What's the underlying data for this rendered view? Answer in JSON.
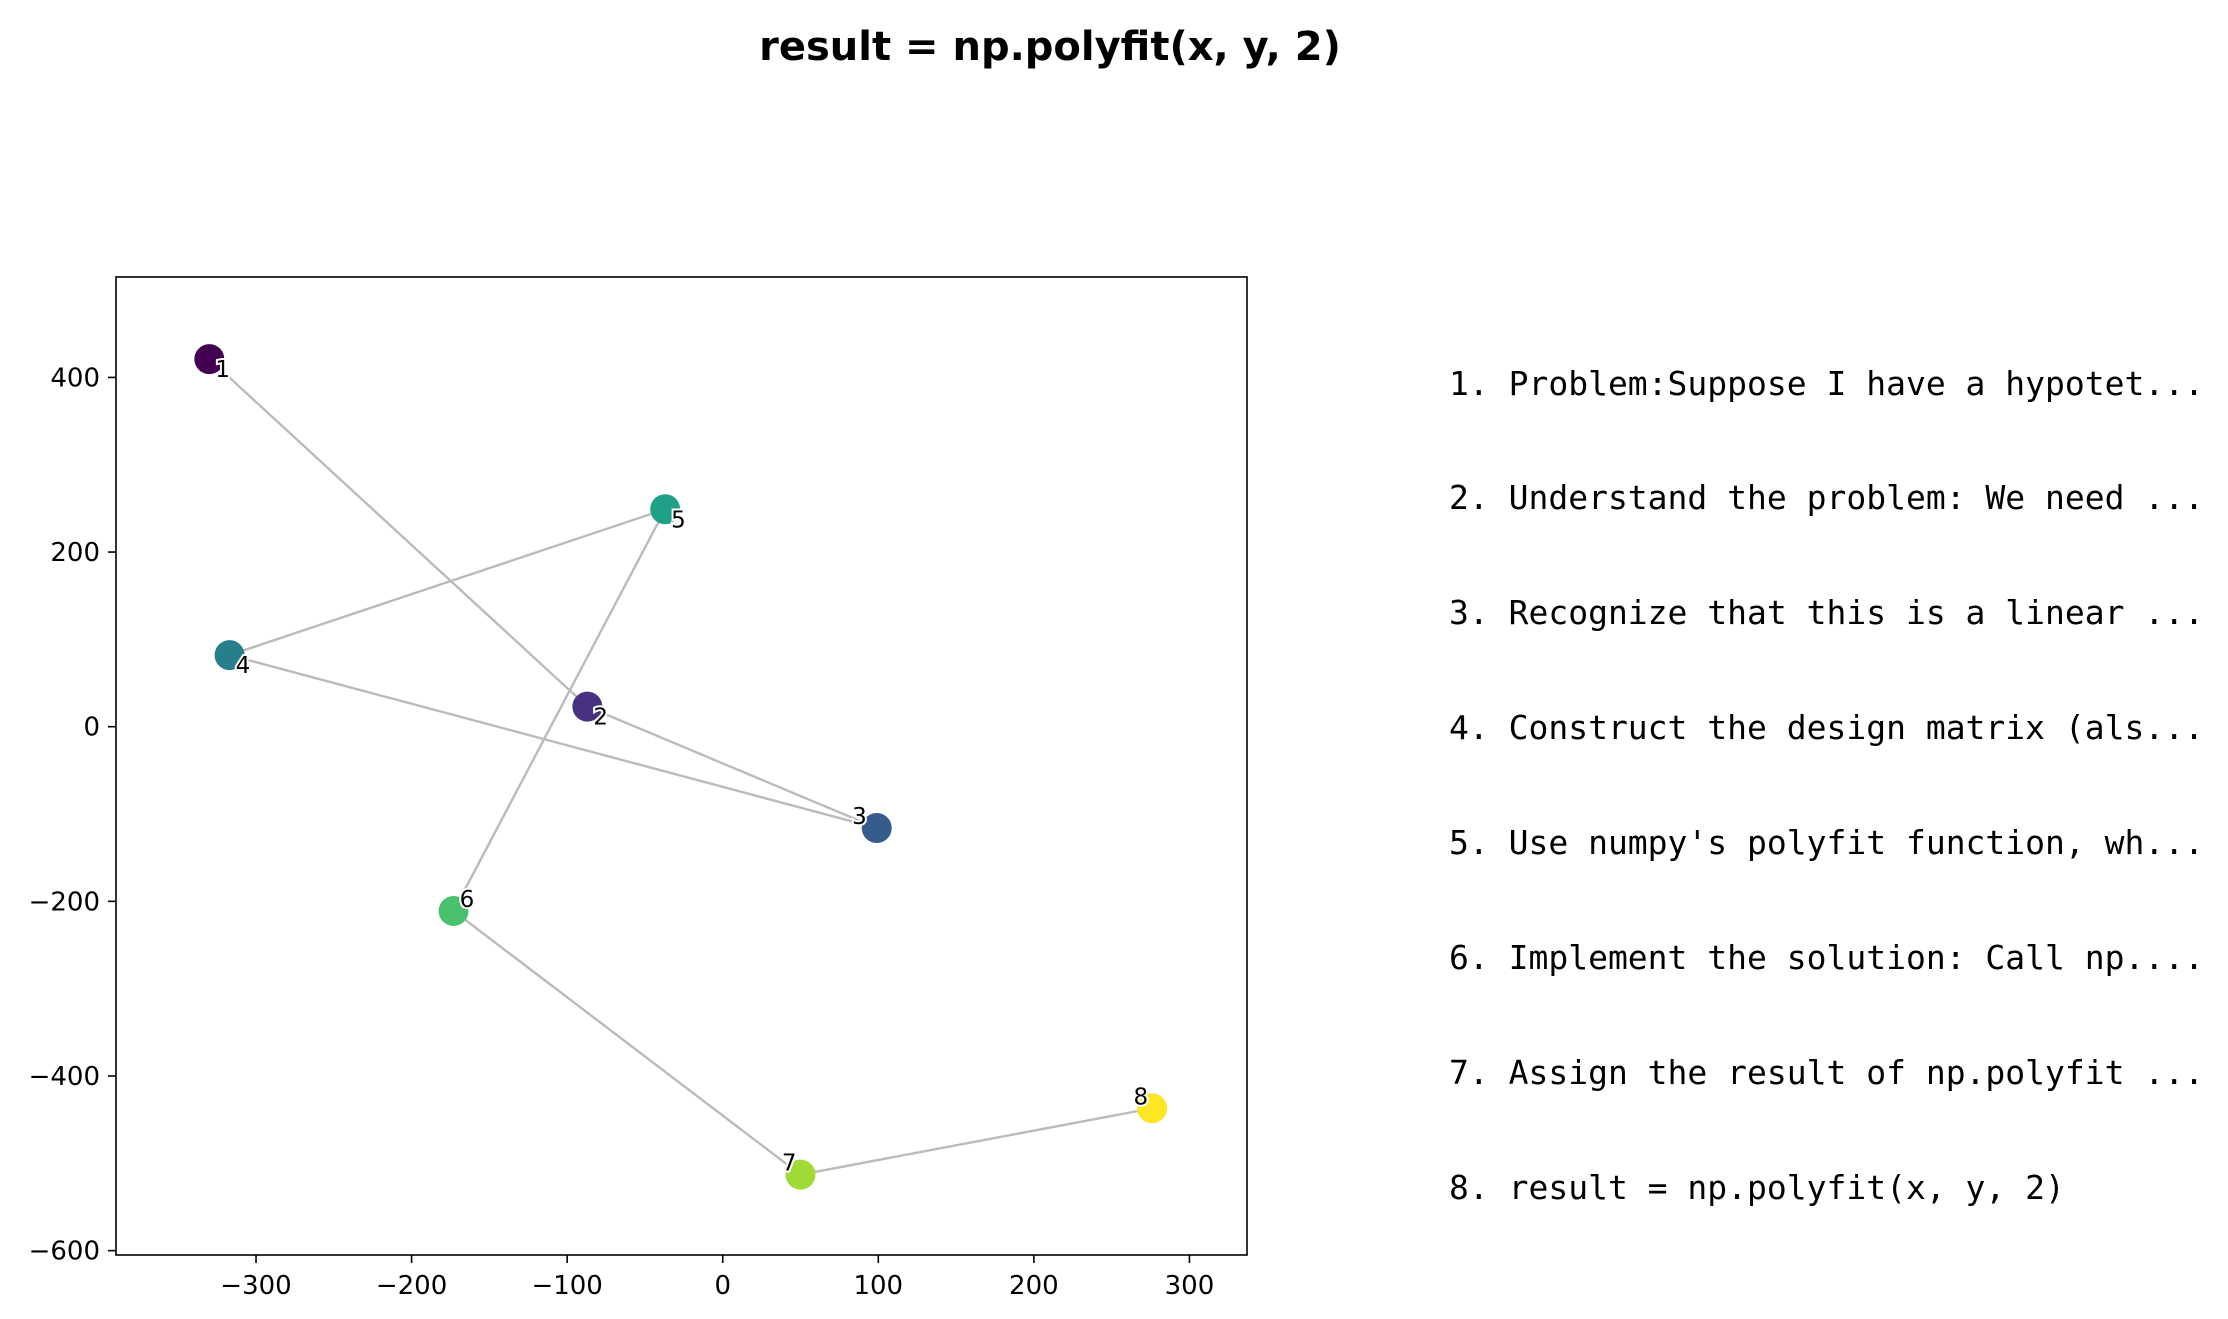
{
  "title": "result = np.polyfit(x, y, 2)",
  "steps": [
    "1. Problem:Suppose I have a hypotet...",
    "2. Understand the problem: We need ...",
    "3. Recognize that this is a linear ...",
    "4. Construct the design matrix (als...",
    "5. Use numpy's polyfit function, wh...",
    "6. Implement the solution: Call np....",
    "7. Assign the result of np.polyfit ...",
    "8. result = np.polyfit(x, y, 2)"
  ],
  "chart_data": {
    "type": "scatter",
    "title": "result = np.polyfit(x, y, 2)",
    "xlabel": "",
    "ylabel": "",
    "xlim": [
      -390,
      337
    ],
    "ylim": [
      -605,
      515
    ],
    "xticks": [
      -300,
      -200,
      -100,
      0,
      100,
      200,
      300
    ],
    "yticks": [
      -600,
      -400,
      -200,
      0,
      200,
      400
    ],
    "grid": false,
    "connected": true,
    "colormap": "viridis",
    "line_color": "#bbbbbb",
    "points": [
      {
        "label": "1",
        "x": -330,
        "y": 421,
        "color": "#440154"
      },
      {
        "label": "2",
        "x": -87,
        "y": 23,
        "color": "#46327e"
      },
      {
        "label": "3",
        "x": 99,
        "y": -116,
        "color": "#365c8d"
      },
      {
        "label": "4",
        "x": -317,
        "y": 82,
        "color": "#277f8e"
      },
      {
        "label": "5",
        "x": -37,
        "y": 249,
        "color": "#1fa187"
      },
      {
        "label": "6",
        "x": -173,
        "y": -211,
        "color": "#4ac16d"
      },
      {
        "label": "7",
        "x": 50,
        "y": -513,
        "color": "#a0da39"
      },
      {
        "label": "8",
        "x": 276,
        "y": -437,
        "color": "#fde725"
      }
    ]
  }
}
